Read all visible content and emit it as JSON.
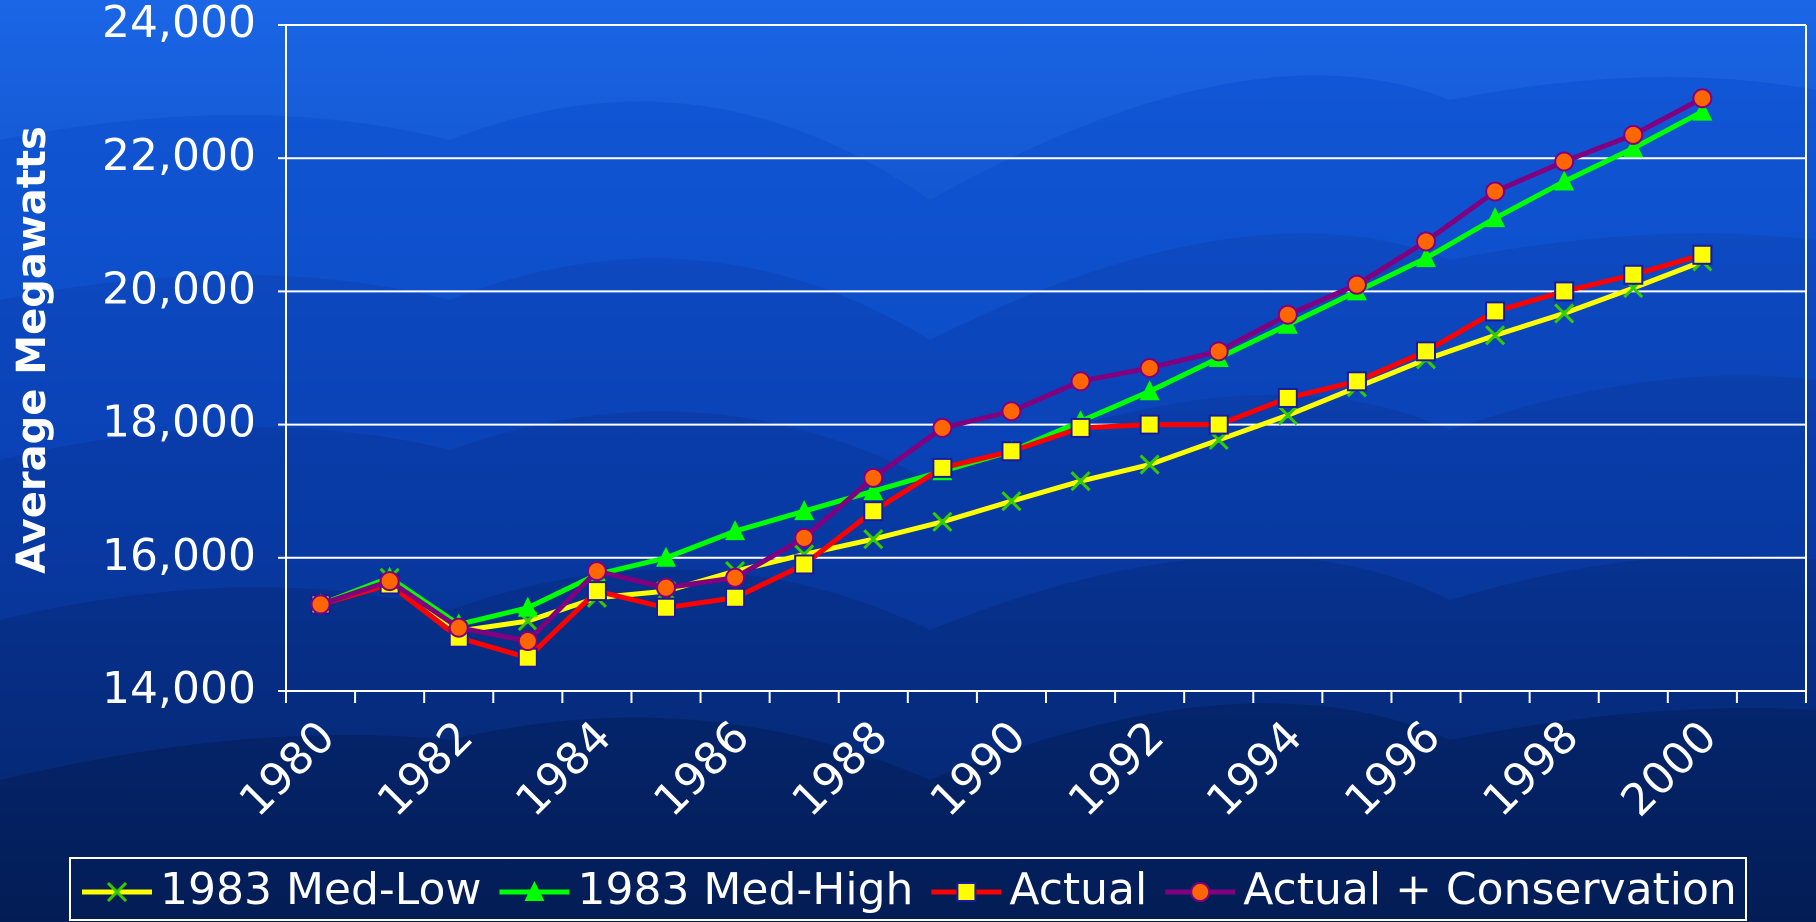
{
  "chart_data": {
    "type": "line",
    "y_label": "Average Megawatts",
    "categories": [
      "1980",
      null,
      "1982",
      null,
      "1984",
      null,
      "1986",
      null,
      "1988",
      null,
      "1990",
      null,
      "1992",
      null,
      "1994",
      null,
      "1996",
      null,
      "1998",
      null,
      "2000"
    ],
    "ylim": [
      14000,
      24000
    ],
    "yticks": [
      {
        "value": 14000,
        "label": "14,000"
      },
      {
        "value": 16000,
        "label": "16,000"
      },
      {
        "value": 18000,
        "label": "18,000"
      },
      {
        "value": 20000,
        "label": "20,000"
      },
      {
        "value": 22000,
        "label": "22,000"
      },
      {
        "value": 24000,
        "label": "24,000"
      }
    ],
    "grid": true,
    "legend": "bottom",
    "series": [
      {
        "name": "1983 Med-Low",
        "color": "#ffff00",
        "marker": "x",
        "marker_color": "#33cc00",
        "values": [
          15300,
          15700,
          14900,
          15050,
          15400,
          15500,
          15800,
          16050,
          16280,
          16540,
          16850,
          17150,
          17400,
          17770,
          18140,
          18560,
          18980,
          19340,
          19670,
          20050,
          20450
        ]
      },
      {
        "name": "1983 Med-High",
        "color": "#00ff00",
        "marker": "triangle",
        "marker_color": "#00ff00",
        "values": [
          15300,
          15700,
          15000,
          15250,
          15750,
          16000,
          16400,
          16700,
          17000,
          17300,
          17600,
          18050,
          18500,
          19000,
          19500,
          20000,
          20500,
          21100,
          21650,
          22150,
          22700
        ]
      },
      {
        "name": "Actual",
        "color": "#ff0000",
        "marker": "square",
        "marker_color": "#ffff00",
        "values": [
          15300,
          15600,
          14800,
          14500,
          15500,
          15250,
          15400,
          15900,
          16700,
          17350,
          17600,
          17950,
          18000,
          18000,
          18400,
          18650,
          19100,
          19700,
          20000,
          20250,
          20550
        ]
      },
      {
        "name": "Actual + Conservation",
        "color": "#800080",
        "marker": "circle",
        "marker_color": "#ff6600",
        "values": [
          15300,
          15650,
          14950,
          14750,
          15800,
          15550,
          15700,
          16300,
          17200,
          17950,
          18200,
          18650,
          18850,
          19100,
          19650,
          20100,
          20750,
          21500,
          21950,
          22350,
          22900
        ]
      }
    ]
  }
}
